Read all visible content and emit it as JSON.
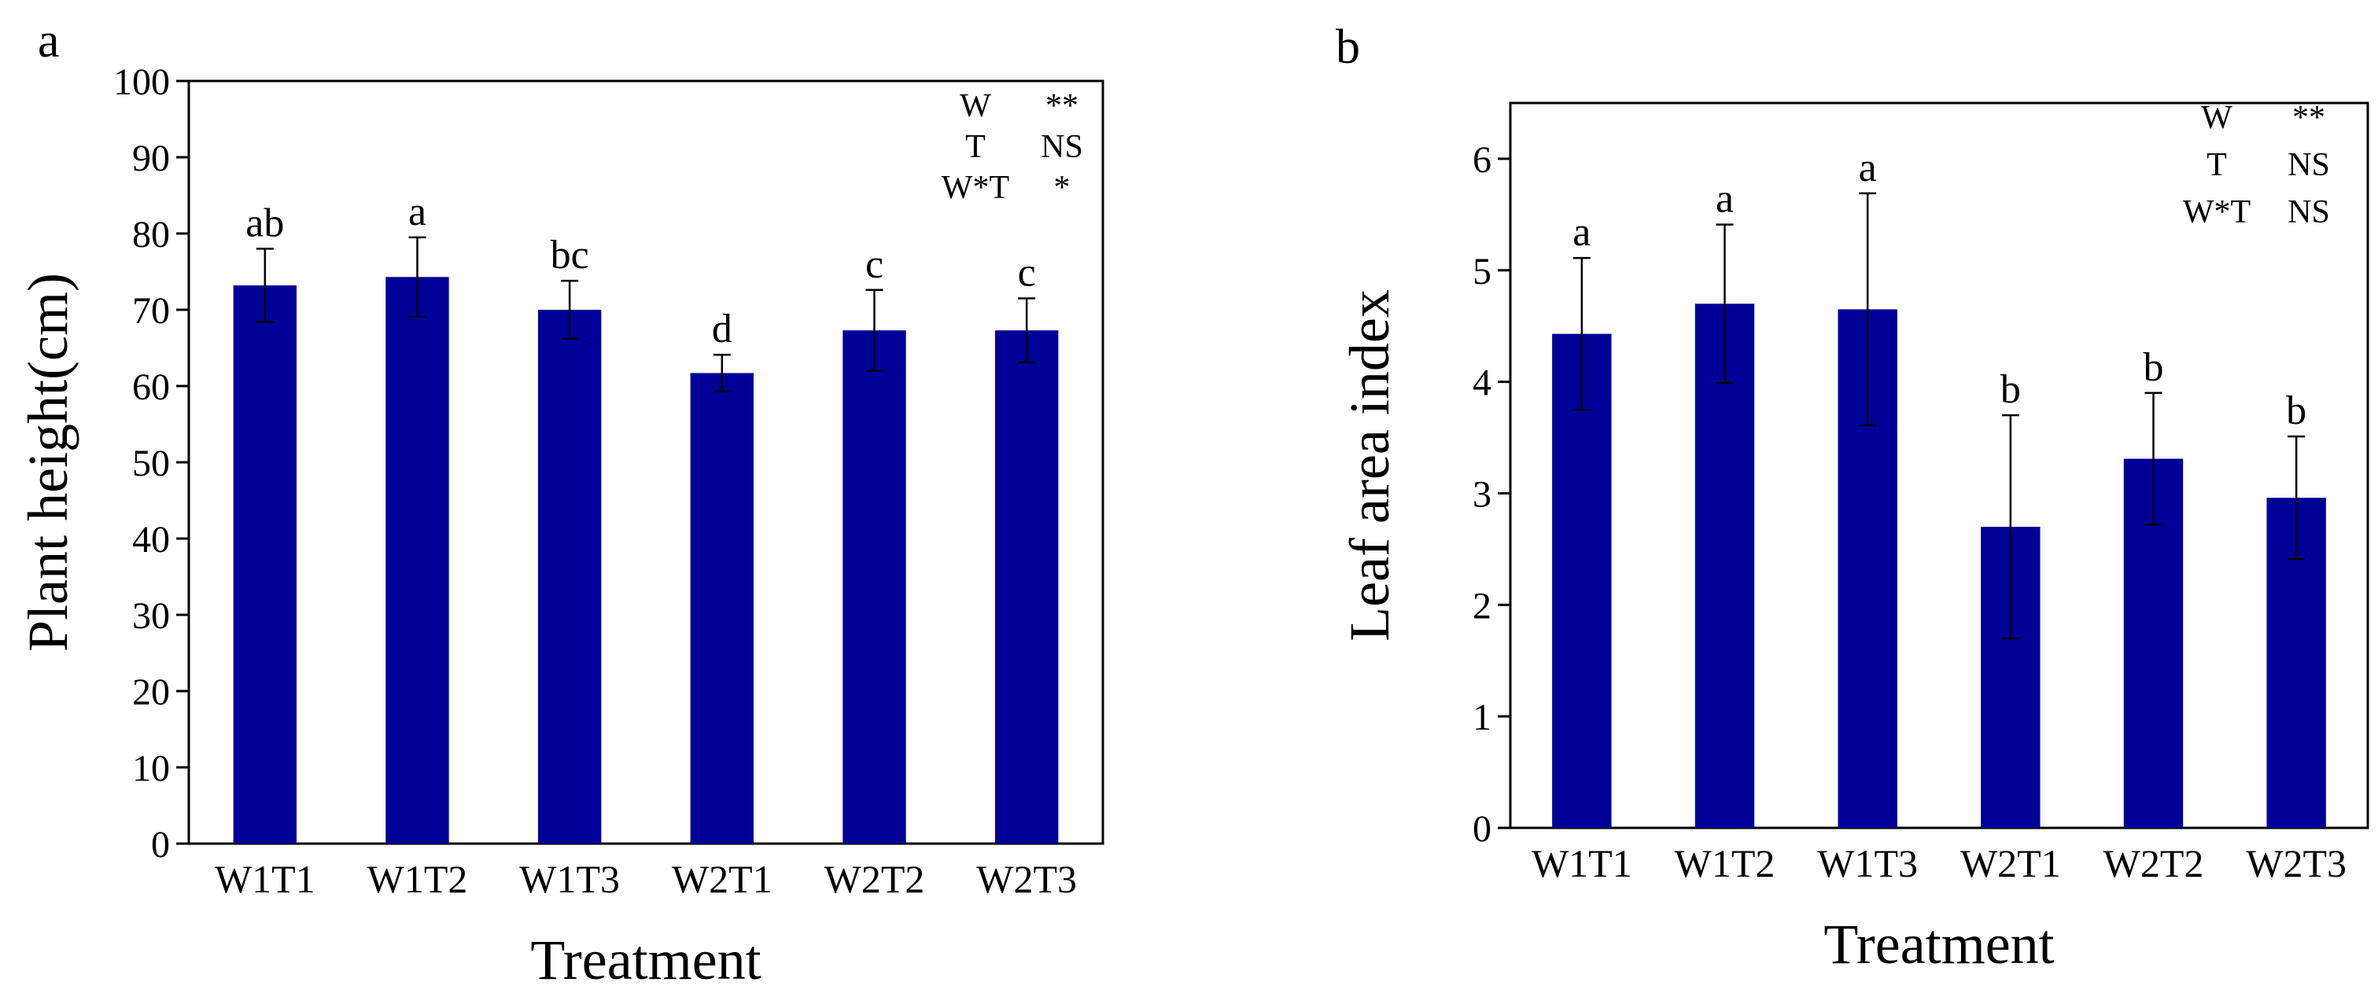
{
  "chart_data": [
    {
      "panel_label": "a",
      "type": "bar",
      "xlabel": "Treatment",
      "ylabel": "Plant height(cm)",
      "categories": [
        "W1T1",
        "W1T2",
        "W1T3",
        "W2T1",
        "W2T2",
        "W2T3"
      ],
      "values": [
        73.2,
        74.3,
        70.0,
        61.7,
        67.3,
        67.3
      ],
      "errors": [
        4.8,
        5.2,
        3.8,
        2.4,
        5.3,
        4.2
      ],
      "letters": [
        "ab",
        "a",
        "bc",
        "d",
        "c",
        "c"
      ],
      "ylim": [
        0,
        100
      ],
      "yticks": [
        "0",
        "10",
        "20",
        "30",
        "40",
        "50",
        "60",
        "70",
        "80",
        "90",
        "100"
      ],
      "bar_color": "#000099",
      "significance": [
        {
          "factor": "W",
          "result": "**"
        },
        {
          "factor": "T",
          "result": "NS"
        },
        {
          "factor": "W*T",
          "result": "*"
        }
      ]
    },
    {
      "panel_label": "b",
      "type": "bar",
      "xlabel": "Treatment",
      "ylabel": "Leaf area index",
      "categories": [
        "W1T1",
        "W1T2",
        "W1T3",
        "W2T1",
        "W2T2",
        "W2T3"
      ],
      "values": [
        4.43,
        4.7,
        4.65,
        2.7,
        3.31,
        2.96
      ],
      "errors": [
        0.68,
        0.71,
        1.04,
        1.0,
        0.59,
        0.55
      ],
      "letters": [
        "a",
        "a",
        "a",
        "b",
        "b",
        "b"
      ],
      "ylim": [
        0,
        6.5
      ],
      "yticks": [
        "0",
        "1",
        "2",
        "3",
        "4",
        "5",
        "6"
      ],
      "bar_color": "#000099",
      "significance": [
        {
          "factor": "W",
          "result": "**"
        },
        {
          "factor": "T",
          "result": "NS"
        },
        {
          "factor": "W*T",
          "result": "NS"
        }
      ]
    }
  ]
}
